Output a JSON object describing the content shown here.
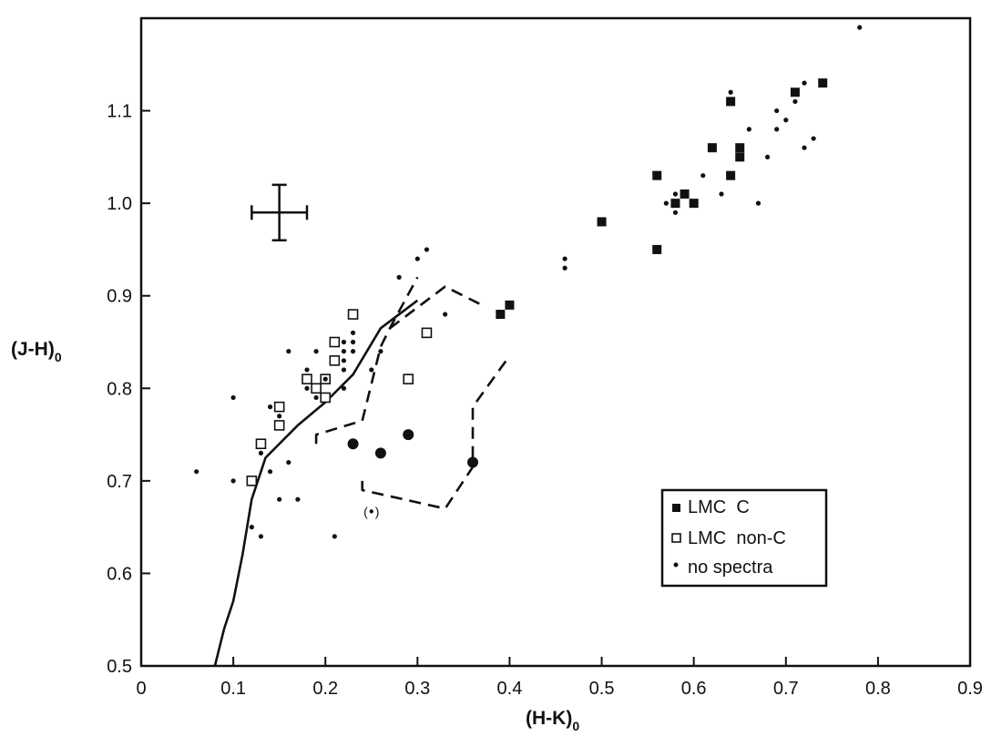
{
  "chart_data": {
    "type": "scatter",
    "xlabel": "(H-K)",
    "xlabel_sub": "0",
    "ylabel": "(J-H)",
    "ylabel_sub": "0",
    "xlim": [
      0,
      0.9
    ],
    "ylim": [
      0.5,
      1.2
    ],
    "x_ticks": [
      0,
      0.1,
      0.2,
      0.3,
      0.4,
      0.5,
      0.6,
      0.7,
      0.8,
      0.9
    ],
    "x_tick_labels": [
      "0",
      "0.1",
      "0.2",
      "0.3",
      "0.4",
      "0.5",
      "0.6",
      "0.7",
      "0.8",
      "0.9"
    ],
    "y_ticks": [
      0.5,
      0.6,
      0.7,
      0.8,
      0.9,
      1.0,
      1.1
    ],
    "y_tick_labels": [
      "0.5",
      "0.6",
      "0.7",
      "0.8",
      "0.9",
      "1.0",
      "1.1"
    ],
    "grid": false,
    "legend_position": "bottom-right",
    "legend": [
      {
        "marker": "filled-square",
        "label": "LMC  C"
      },
      {
        "marker": "open-square",
        "label": "LMC  non-C"
      },
      {
        "marker": "small-dot",
        "label": "no spectra"
      }
    ],
    "series": [
      {
        "name": "LMC  C",
        "marker": "filled-square",
        "points": [
          [
            0.39,
            0.88
          ],
          [
            0.4,
            0.89
          ],
          [
            0.5,
            0.98
          ],
          [
            0.56,
            0.95
          ],
          [
            0.56,
            1.03
          ],
          [
            0.58,
            1.0
          ],
          [
            0.59,
            1.01
          ],
          [
            0.6,
            1.0
          ],
          [
            0.62,
            1.06
          ],
          [
            0.64,
            1.03
          ],
          [
            0.65,
            1.05
          ],
          [
            0.65,
            1.06
          ],
          [
            0.64,
            1.11
          ],
          [
            0.71,
            1.12
          ],
          [
            0.74,
            1.13
          ]
        ]
      },
      {
        "name": "LMC  non-C",
        "marker": "open-square",
        "points": [
          [
            0.12,
            0.7
          ],
          [
            0.13,
            0.74
          ],
          [
            0.15,
            0.76
          ],
          [
            0.15,
            0.78
          ],
          [
            0.18,
            0.81
          ],
          [
            0.19,
            0.8
          ],
          [
            0.2,
            0.79
          ],
          [
            0.2,
            0.81
          ],
          [
            0.21,
            0.83
          ],
          [
            0.21,
            0.85
          ],
          [
            0.23,
            0.88
          ],
          [
            0.29,
            0.81
          ],
          [
            0.31,
            0.86
          ]
        ]
      },
      {
        "name": "no spectra",
        "marker": "small-dot",
        "points": [
          [
            0.06,
            0.71
          ],
          [
            0.1,
            0.79
          ],
          [
            0.1,
            0.7
          ],
          [
            0.12,
            0.65
          ],
          [
            0.13,
            0.64
          ],
          [
            0.13,
            0.73
          ],
          [
            0.14,
            0.71
          ],
          [
            0.14,
            0.78
          ],
          [
            0.15,
            0.77
          ],
          [
            0.15,
            0.68
          ],
          [
            0.16,
            0.72
          ],
          [
            0.16,
            0.84
          ],
          [
            0.17,
            0.68
          ],
          [
            0.18,
            0.82
          ],
          [
            0.18,
            0.8
          ],
          [
            0.19,
            0.84
          ],
          [
            0.19,
            0.79
          ],
          [
            0.2,
            0.81
          ],
          [
            0.21,
            0.64
          ],
          [
            0.22,
            0.8
          ],
          [
            0.22,
            0.82
          ],
          [
            0.22,
            0.83
          ],
          [
            0.22,
            0.84
          ],
          [
            0.22,
            0.85
          ],
          [
            0.23,
            0.84
          ],
          [
            0.23,
            0.85
          ],
          [
            0.23,
            0.86
          ],
          [
            0.25,
            0.82
          ],
          [
            0.26,
            0.84
          ],
          [
            0.28,
            0.92
          ],
          [
            0.3,
            0.94
          ],
          [
            0.31,
            0.95
          ],
          [
            0.33,
            0.88
          ],
          [
            0.46,
            0.93
          ],
          [
            0.46,
            0.94
          ],
          [
            0.57,
            1.0
          ],
          [
            0.58,
            0.99
          ],
          [
            0.58,
            1.01
          ],
          [
            0.61,
            1.03
          ],
          [
            0.63,
            1.01
          ],
          [
            0.64,
            1.12
          ],
          [
            0.66,
            1.08
          ],
          [
            0.67,
            1.0
          ],
          [
            0.68,
            1.05
          ],
          [
            0.69,
            1.08
          ],
          [
            0.69,
            1.1
          ],
          [
            0.7,
            1.09
          ],
          [
            0.71,
            1.11
          ],
          [
            0.72,
            1.06
          ],
          [
            0.72,
            1.13
          ],
          [
            0.73,
            1.07
          ],
          [
            0.78,
            1.19
          ]
        ]
      },
      {
        "name": "",
        "marker": "large-dot",
        "points": [
          [
            0.23,
            0.74
          ],
          [
            0.26,
            0.73
          ],
          [
            0.29,
            0.75
          ],
          [
            0.36,
            0.72
          ]
        ]
      },
      {
        "name": "",
        "marker": "paren-dot",
        "points": [
          [
            0.25,
            0.667
          ]
        ]
      }
    ],
    "curves": [
      {
        "style": "solid",
        "points": [
          [
            0.08,
            0.5
          ],
          [
            0.09,
            0.54
          ],
          [
            0.1,
            0.57
          ],
          [
            0.11,
            0.62
          ],
          [
            0.12,
            0.68
          ],
          [
            0.135,
            0.725
          ],
          [
            0.15,
            0.74
          ],
          [
            0.17,
            0.76
          ],
          [
            0.2,
            0.785
          ],
          [
            0.23,
            0.815
          ],
          [
            0.26,
            0.865
          ],
          [
            0.3,
            0.895
          ]
        ]
      },
      {
        "style": "dashed",
        "points": [
          [
            0.19,
            0.74
          ],
          [
            0.19,
            0.75
          ],
          [
            0.24,
            0.765
          ],
          [
            0.26,
            0.845
          ],
          [
            0.27,
            0.865
          ],
          [
            0.3,
            0.92
          ]
        ]
      },
      {
        "style": "dashed",
        "points": [
          [
            0.27,
            0.865
          ],
          [
            0.33,
            0.91
          ],
          [
            0.37,
            0.89
          ]
        ]
      },
      {
        "style": "dashed",
        "points": [
          [
            0.24,
            0.7
          ],
          [
            0.24,
            0.69
          ],
          [
            0.33,
            0.67
          ],
          [
            0.36,
            0.715
          ],
          [
            0.36,
            0.78
          ],
          [
            0.4,
            0.835
          ]
        ]
      }
    ],
    "error_bar": {
      "x": 0.15,
      "y": 0.99,
      "xerr": 0.03,
      "yerr": 0.03
    }
  }
}
